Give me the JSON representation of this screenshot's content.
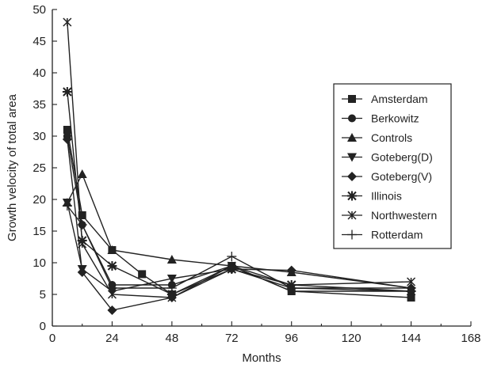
{
  "chart_data": {
    "type": "line",
    "xlabel": "Months",
    "ylabel": "Growth velocity of total area",
    "xlim": [
      0,
      168
    ],
    "ylim": [
      0,
      50
    ],
    "xticks": [
      0,
      24,
      48,
      72,
      96,
      120,
      144,
      168
    ],
    "yticks": [
      0,
      5,
      10,
      15,
      20,
      25,
      30,
      35,
      40,
      45,
      50
    ],
    "legend_position": "right",
    "grid": false,
    "series": [
      {
        "name": "Amsterdam",
        "marker": "square",
        "x": [
          6,
          12,
          24,
          36,
          48,
          72,
          96,
          144
        ],
        "y": [
          31,
          17.5,
          12,
          8.2,
          5,
          9.5,
          5.5,
          4.5
        ]
      },
      {
        "name": "Berkowitz",
        "marker": "circle",
        "x": [
          6,
          12,
          24,
          48,
          72,
          96,
          144
        ],
        "y": [
          30,
          16,
          6.5,
          6.5,
          9.5,
          5.5,
          5.5
        ]
      },
      {
        "name": "Controls",
        "marker": "triangle-up",
        "x": [
          6,
          12,
          24,
          48,
          72,
          96,
          144
        ],
        "y": [
          19.5,
          24,
          12,
          10.5,
          9.5,
          8.5,
          6
        ]
      },
      {
        "name": "Goteberg(D)",
        "marker": "triangle-down",
        "x": [
          6,
          12,
          24,
          48,
          72,
          96,
          144
        ],
        "y": [
          19.5,
          9,
          5.5,
          7.5,
          9,
          6,
          5.5
        ]
      },
      {
        "name": "Goteberg(V)",
        "marker": "diamond",
        "x": [
          6,
          12,
          24,
          48,
          72,
          96,
          144
        ],
        "y": [
          29.5,
          8.5,
          2.5,
          4.5,
          9,
          8.8,
          6
        ]
      },
      {
        "name": "Illinois",
        "marker": "asterisk",
        "x": [
          6,
          12,
          24,
          48,
          72,
          96,
          144
        ],
        "y": [
          37,
          13.5,
          9.5,
          5,
          9,
          6.5,
          5.5
        ]
      },
      {
        "name": "Northwestern",
        "marker": "x-star",
        "x": [
          6,
          12,
          24,
          48,
          72,
          96,
          144
        ],
        "y": [
          48,
          13,
          5,
          4.5,
          9.5,
          6.5,
          7
        ]
      },
      {
        "name": "Rotterdam",
        "marker": "plus",
        "x": [
          6,
          12,
          24,
          48,
          72,
          96,
          144
        ],
        "y": [
          19,
          16,
          6,
          6,
          11,
          6,
          6
        ]
      }
    ]
  }
}
